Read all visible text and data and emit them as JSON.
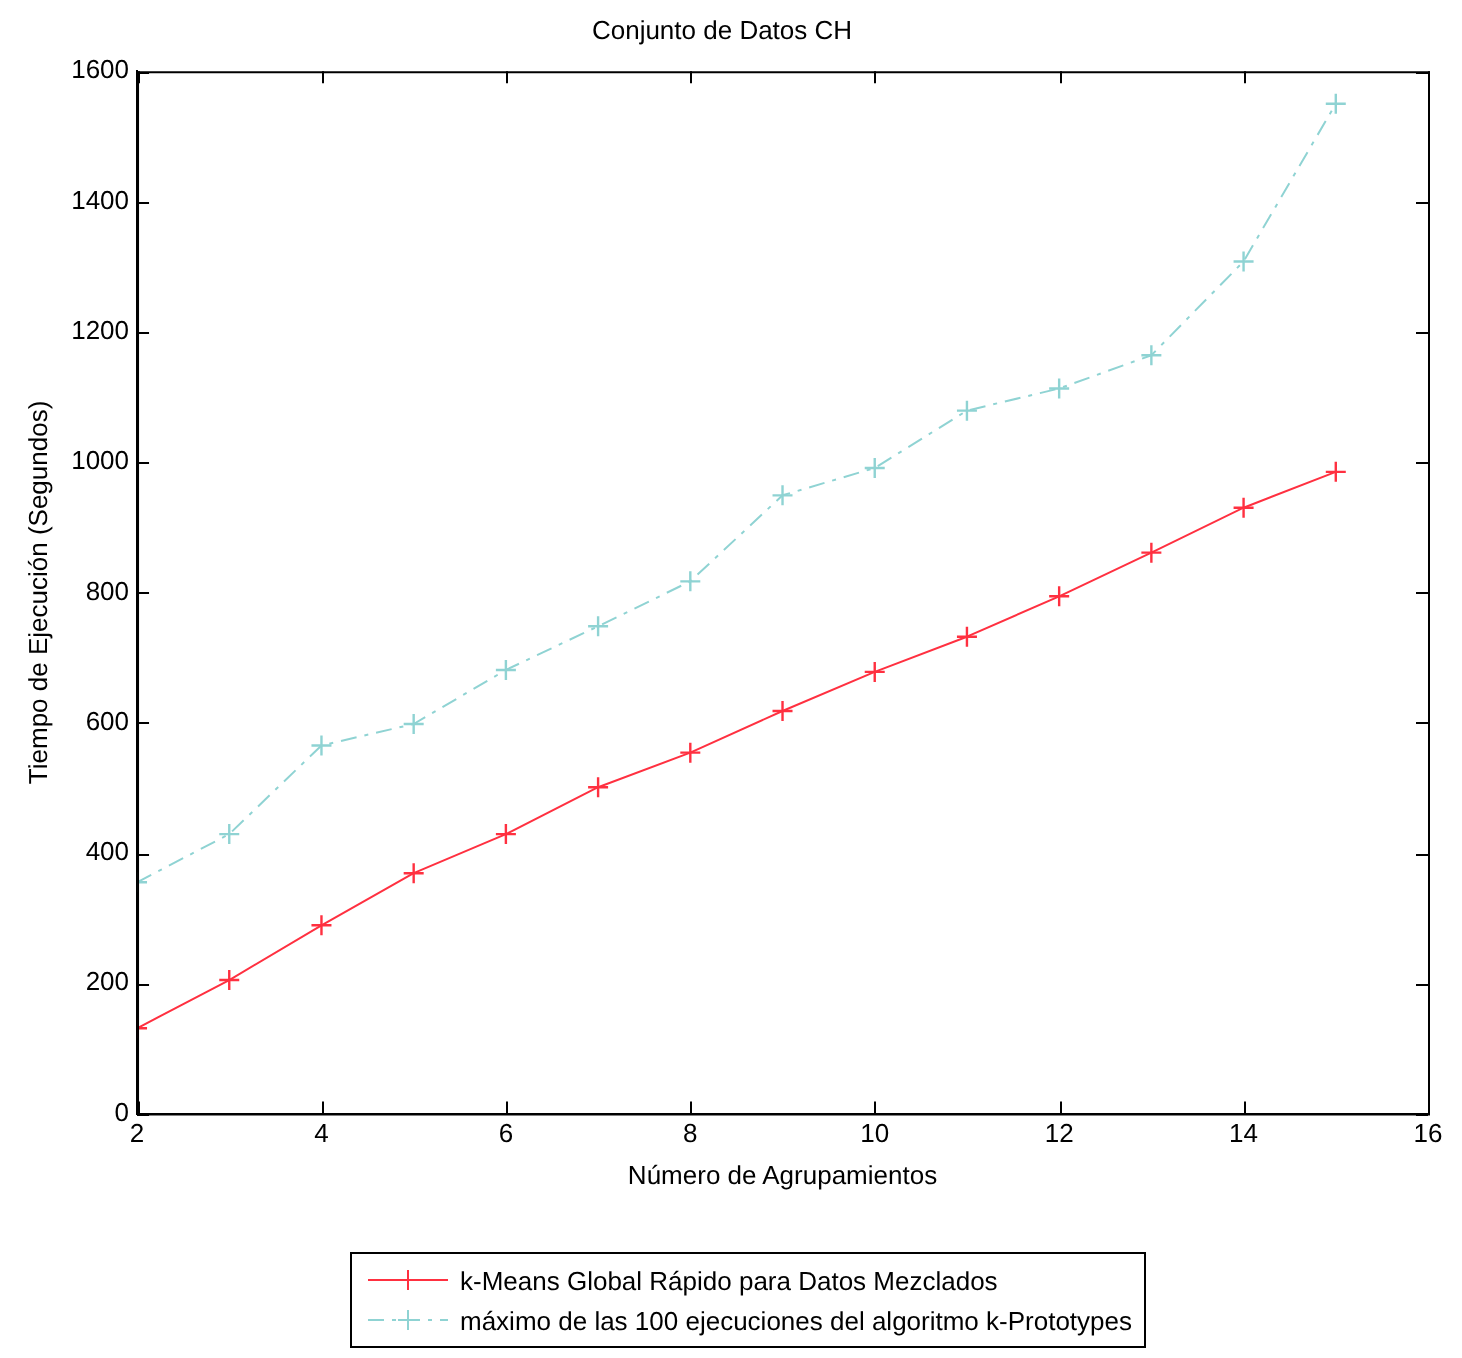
{
  "chart_data": {
    "type": "line",
    "title": "Conjunto de Datos CH",
    "xlabel": "Número de Agrupamientos",
    "ylabel": "Tiempo de Ejecución (Segundos)",
    "x": [
      2,
      3,
      4,
      5,
      6,
      7,
      8,
      9,
      10,
      11,
      12,
      13,
      14,
      15
    ],
    "series": [
      {
        "name": "k-Means Global Rápido para Datos Mezclados",
        "color": "#ff3040",
        "marker": "cross",
        "line_style": "solid",
        "values": [
          131,
          205,
          289,
          369,
          429,
          501,
          554,
          618,
          678,
          732,
          794,
          861,
          930,
          985
        ]
      },
      {
        "name": "máximo de las 100 ejecuciones del algoritmo k-Prototypes",
        "color": "#8fd3d3",
        "marker": "cross",
        "line_style": "dashed",
        "values": [
          355,
          429,
          565,
          598,
          681,
          748,
          817,
          949,
          991,
          1079,
          1113,
          1164,
          1308,
          1550
        ]
      }
    ],
    "xlim": [
      2,
      16
    ],
    "xticks": [
      2,
      4,
      6,
      8,
      10,
      12,
      14,
      16
    ],
    "ylim": [
      0,
      1600
    ],
    "yticks": [
      0,
      200,
      400,
      600,
      800,
      1000,
      1200,
      1400,
      1600
    ],
    "grid": false,
    "legend": "bottom"
  }
}
